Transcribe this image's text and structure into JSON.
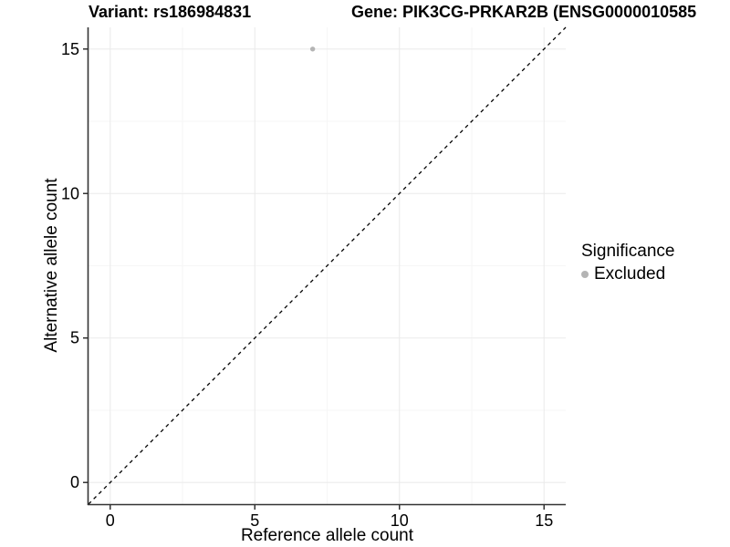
{
  "colors": {
    "point": "#b4b4b4",
    "grid_major": "#ebebeb",
    "grid_minor": "#f6f6f6",
    "axis_line": "#333333",
    "reference_line": "#000000",
    "text": "#000000",
    "background": "#ffffff"
  },
  "chart_data": {
    "type": "scatter",
    "title_left": "Variant: rs186984831",
    "title_right": "Gene: PIK3CG-PRKAR2B (ENSG0000010585",
    "xlabel": "Reference allele count",
    "ylabel": "Alternative allele count",
    "xlim": [
      -0.75,
      15.75
    ],
    "ylim": [
      -0.75,
      15.75
    ],
    "xticks": [
      0,
      5,
      10,
      15
    ],
    "yticks": [
      0,
      5,
      10,
      15
    ],
    "xminor": [
      2.5,
      7.5,
      12.5
    ],
    "yminor": [
      2.5,
      7.5,
      12.5
    ],
    "grid": "on",
    "points": [
      {
        "x": 7,
        "y": 15,
        "series": "Excluded"
      }
    ],
    "reference_line": {
      "kind": "abline",
      "slope": 1,
      "intercept": 0,
      "style": "dashed"
    },
    "legend": {
      "title": "Significance",
      "position": "right",
      "entries": [
        {
          "label": "Excluded",
          "color": "#b4b4b4",
          "marker": "point-icon"
        }
      ]
    }
  }
}
